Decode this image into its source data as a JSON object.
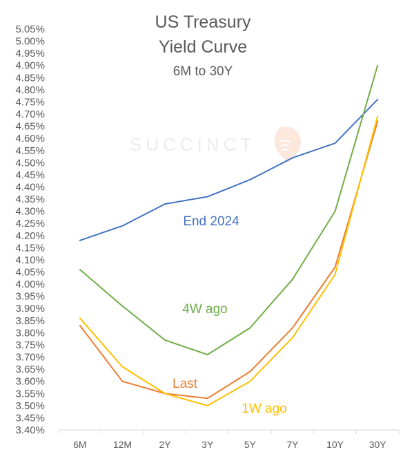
{
  "watermark": "SUCCINCT",
  "chart_data": {
    "type": "line",
    "title_lines": [
      "US Treasury",
      "Yield Curve"
    ],
    "subtitle": "6M to 30Y",
    "xlabel": "",
    "ylabel": "",
    "categories": [
      "6M",
      "12M",
      "2Y",
      "3Y",
      "5Y",
      "7Y",
      "10Y",
      "30Y"
    ],
    "ylim": [
      3.4,
      5.05
    ],
    "ytick_step": 0.05,
    "y_tick_labels": [
      "5.05%",
      "5.00%",
      "4.95%",
      "4.90%",
      "4.85%",
      "4.80%",
      "4.75%",
      "4.70%",
      "4.65%",
      "4.60%",
      "4.55%",
      "4.50%",
      "4.45%",
      "4.40%",
      "4.35%",
      "4.30%",
      "4.25%",
      "4.20%",
      "4.15%",
      "4.10%",
      "4.05%",
      "4.00%",
      "3.95%",
      "3.90%",
      "3.85%",
      "3.80%",
      "3.75%",
      "3.70%",
      "3.65%",
      "3.60%",
      "3.55%",
      "3.50%",
      "3.45%",
      "3.40%"
    ],
    "grid": false,
    "legend": "inline labels",
    "series": [
      {
        "name": "End 2024",
        "color": "#4472c4",
        "values": [
          4.18,
          4.24,
          4.33,
          4.36,
          4.43,
          4.52,
          4.58,
          4.76
        ]
      },
      {
        "name": "4W ago",
        "color": "#70ad47",
        "values": [
          4.06,
          3.91,
          3.77,
          3.71,
          3.82,
          4.02,
          4.3,
          4.9
        ]
      },
      {
        "name": "Last",
        "color": "#ed7d31",
        "values": [
          3.83,
          3.6,
          3.55,
          3.53,
          3.64,
          3.82,
          4.07,
          4.67
        ]
      },
      {
        "name": "1W ago",
        "color": "#ffc000",
        "values": [
          3.86,
          3.66,
          3.55,
          3.5,
          3.6,
          3.78,
          4.04,
          4.69
        ]
      }
    ]
  }
}
